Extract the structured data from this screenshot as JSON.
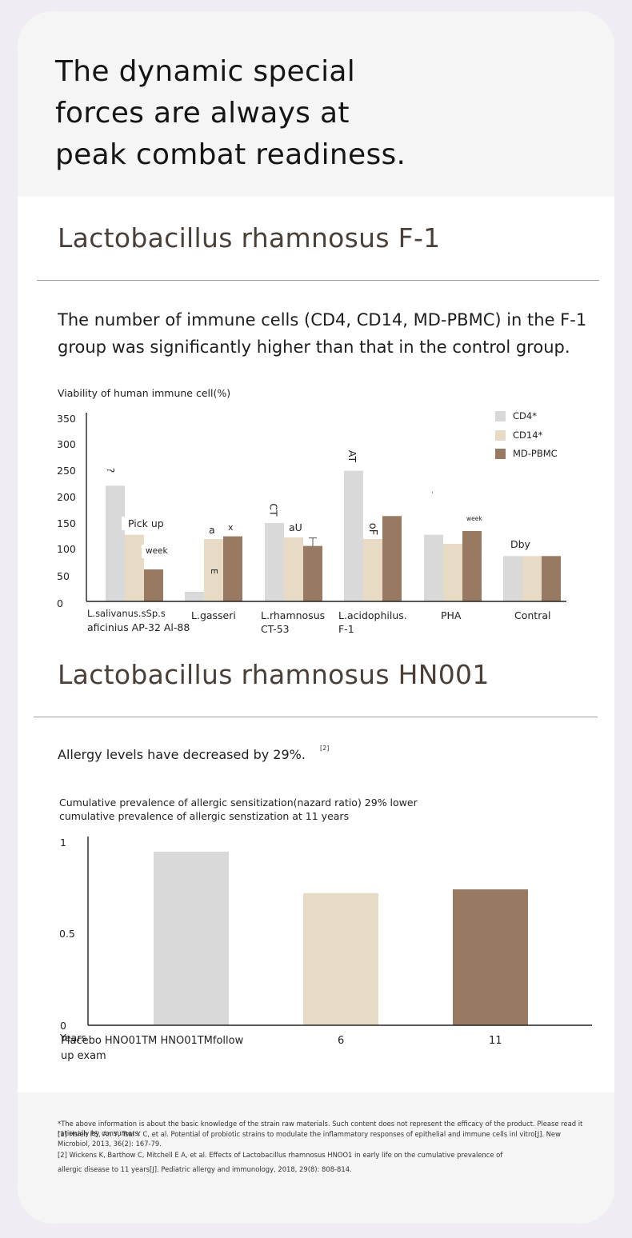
{
  "hero": {
    "title_lines": [
      "The dynamic special",
      "forces are always at",
      "peak combat readiness."
    ]
  },
  "section1": {
    "title": "Lactobacillus rhamnosus F-1",
    "description_lines": [
      "The number of immune cells (CD4, CD14, MD-PBMC) in the F-1",
      "group was significantly higher than that in the control group."
    ]
  },
  "section2": {
    "title": "Lactobacillus rhamnosus HN001",
    "description": "Allergy levels have decreased by 29%.",
    "ref_mark": "[2]"
  },
  "colors": {
    "cd4": "#d9d9d9",
    "cd14": "#e8dbc6",
    "mdpbmc": "#987a62"
  },
  "chart_data": [
    {
      "type": "bar",
      "title": "Viability of human immune cell(%)",
      "ylabel": "Viability of human immune cell(%)",
      "xlabel": "",
      "ylim": [
        0,
        350
      ],
      "yticks": [
        "350",
        "300",
        "250",
        "200",
        "150",
        "100",
        "50",
        "0"
      ],
      "legend_position": "top-right",
      "categories": [
        [
          "L.salivanus.sSp.s",
          "aficinius AP-32 Al-88"
        ],
        [
          "L.gasseri"
        ],
        [
          "L.rhamnosus",
          "CT-53"
        ],
        [
          "L.acidophilus.",
          "F-1"
        ],
        [
          "PHA"
        ],
        [
          "Contral"
        ]
      ],
      "series": [
        {
          "name": "CD4*",
          "values": [
            217,
            18,
            147,
            245,
            125,
            85
          ]
        },
        {
          "name": "CD14*",
          "values": [
            125,
            117,
            120,
            117,
            108,
            85
          ]
        },
        {
          "name": "MD-PBMC",
          "values": [
            60,
            122,
            104,
            160,
            132,
            85
          ]
        }
      ],
      "annotations": [
        "?",
        "Pick up",
        "week",
        "E",
        "a",
        "x",
        "CT",
        "aU",
        "AT",
        "oF",
        "·",
        "week",
        "Dby"
      ]
    },
    {
      "type": "bar",
      "title_lines": [
        "Cumulative prevalence of allergic sensitization(nazard ratio) 29% lower",
        "cumulative prevalence of allergic senstization at 11 years"
      ],
      "ylim": [
        0,
        1
      ],
      "yticks": [
        "1",
        "0.5",
        "0"
      ],
      "x_axis_title": "Years",
      "categories": [
        [
          "Placebo HNO01TM HNO01TMfollow",
          "up exam"
        ],
        [
          "6"
        ],
        [
          "11"
        ]
      ],
      "values": [
        0.92,
        0.7,
        0.72
      ]
    }
  ],
  "footer": {
    "lines": [
      "*The above information is about the basic knowledge of the strain raw materials. Such content does not represent the efficacy of the product. Please read it rationally by consumers.",
      "[1] Hsieh PS, An Y, Tsai Y C, et al. Potential of probiotic strains to modulate the inflammatory responses of epithelial and immune cells inl vitro[J]. New",
      "Microbiol, 2013, 36(2): 167-79.",
      "[2] Wickens K, Barthow C, Mitchell E A, et al. Effects of Lactobacillus rhamnosus HNOO1 in early life on the cumulative prevalence of",
      "allergic disease to 11 years[J]. Pediatric allergy and immunology, 2018, 29(8): 808-814."
    ]
  }
}
